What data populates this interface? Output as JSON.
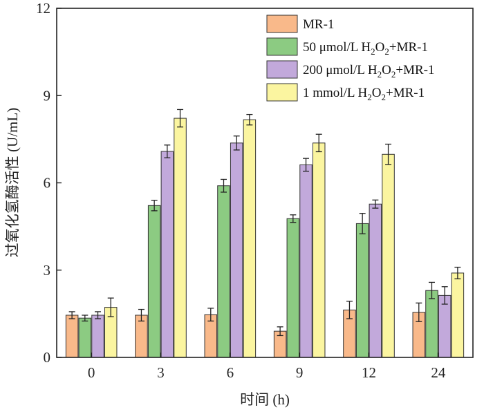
{
  "chart_data": {
    "type": "bar",
    "xlabel": "时间 (h)",
    "ylabel": "过氧化氢酶活性 (U/mL)",
    "ylim": [
      0,
      12
    ],
    "yticks": [
      0,
      3,
      6,
      9,
      12
    ],
    "categories": [
      "0",
      "3",
      "6",
      "9",
      "12",
      "24"
    ],
    "legend_position": "top-right",
    "series": [
      {
        "name": "MR-1",
        "color": "#F9B98A",
        "values": [
          1.45,
          1.45,
          1.47,
          0.9,
          1.63,
          1.55
        ],
        "errors": [
          0.12,
          0.2,
          0.22,
          0.15,
          0.3,
          0.32
        ]
      },
      {
        "name": "50 μmol/L H2O2+MR-1",
        "color": "#8CCB82",
        "values": [
          1.35,
          5.22,
          5.9,
          4.77,
          4.6,
          2.3
        ],
        "errors": [
          0.1,
          0.18,
          0.22,
          0.13,
          0.35,
          0.28
        ]
      },
      {
        "name": "200 μmol/L H2O2+MR-1",
        "color": "#C2A9DB",
        "values": [
          1.45,
          7.08,
          7.37,
          6.62,
          5.27,
          2.13
        ],
        "errors": [
          0.12,
          0.22,
          0.24,
          0.22,
          0.14,
          0.3
        ]
      },
      {
        "name": "1 mmol/L H2O2+MR-1",
        "color": "#FBF5A0",
        "values": [
          1.72,
          8.22,
          8.17,
          7.37,
          6.98,
          2.9
        ],
        "errors": [
          0.32,
          0.3,
          0.18,
          0.3,
          0.35,
          0.2
        ]
      }
    ],
    "legend": [
      {
        "pre": "MR-1",
        "sub": "",
        "mid": "",
        "sub2": "",
        "post": ""
      },
      {
        "pre": "50 μmol/L H",
        "sub": "2",
        "mid": "O",
        "sub2": "2",
        "post": "+MR-1"
      },
      {
        "pre": "200 μmol/L H",
        "sub": "2",
        "mid": "O",
        "sub2": "2",
        "post": "+MR-1"
      },
      {
        "pre": "1 mmol/L H",
        "sub": "2",
        "mid": "O",
        "sub2": "2",
        "post": "+MR-1"
      }
    ]
  }
}
